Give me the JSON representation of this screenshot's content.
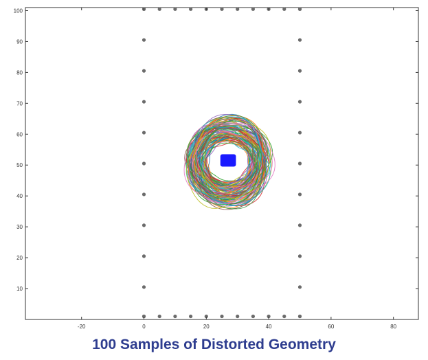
{
  "caption": "100 Samples of Distorted Geometry",
  "colors": {
    "caption": "#2e3d8f",
    "axes": "#333333",
    "square": "#1a1aff",
    "marker": "#6b6b6b",
    "rings": [
      "#d62728",
      "#2ca02c",
      "#1f77b4",
      "#ff7f0e",
      "#9467bd",
      "#8c564b",
      "#17becf",
      "#bcbd22",
      "#e377c2",
      "#4b9b4b"
    ]
  },
  "chart_data": {
    "type": "line",
    "title": "",
    "xlabel": "",
    "ylabel": "",
    "xlim": [
      -38,
      88
    ],
    "ylim": [
      0,
      101
    ],
    "x_ticks": [
      -20,
      0,
      20,
      40,
      60,
      80
    ],
    "y_ticks": [
      10,
      20,
      30,
      40,
      50,
      60,
      70,
      80,
      90,
      100
    ],
    "grid": false,
    "legend": "none",
    "boundary_markers": {
      "left": {
        "x": 0,
        "y": [
          1,
          10.5,
          20.5,
          30.5,
          40.5,
          50.5,
          60.5,
          70.5,
          80.5,
          90.5,
          100.5
        ]
      },
      "right": {
        "x": 50,
        "y": [
          1,
          10.5,
          20.5,
          30.5,
          40.5,
          50.5,
          60.5,
          70.5,
          80.5,
          90.5,
          100.5
        ]
      },
      "top": {
        "y": 100.5,
        "x": [
          0,
          5,
          10,
          15,
          20,
          25,
          30,
          35,
          40,
          45,
          50
        ]
      },
      "bottom": {
        "y": 1,
        "x": [
          0,
          5,
          10,
          15,
          20,
          25,
          30,
          35,
          40,
          45,
          50
        ]
      }
    },
    "inner_square": {
      "x": [
        24.5,
        29.5
      ],
      "y": [
        49.5,
        53.5
      ]
    },
    "ring_samples": 100,
    "ring_center": [
      27,
      51
    ],
    "ring_inner_radius": [
      7,
      6.5
    ],
    "ring_outer_radius": [
      13.5,
      14
    ]
  }
}
